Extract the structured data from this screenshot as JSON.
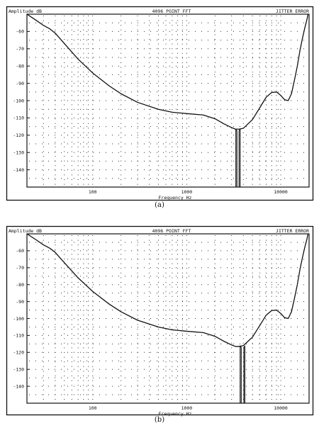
{
  "chart_data": [
    {
      "type": "line",
      "panel_caption": "(a)",
      "title": "4096 POINT FFT",
      "ylabel": "Amplitude dB",
      "subtitle_right": "JITTER ERROR",
      "xlabel": "Frequency Hz",
      "xscale": "log",
      "xlim": [
        20,
        20000
      ],
      "ylim": [
        -150,
        -50
      ],
      "x_ticks": [
        "100",
        "1000",
        "10000"
      ],
      "y_ticks": [
        "-60",
        "-70",
        "-80",
        "-90",
        "-100",
        "-110",
        "-120",
        "-130",
        "-140"
      ],
      "grid": "dotted",
      "series": [
        {
          "name": "",
          "x": [
            20,
            25,
            30,
            35,
            40,
            50,
            70,
            100,
            150,
            200,
            300,
            500,
            700,
            1000,
            1500,
            2000,
            2500,
            3000,
            3300,
            3600,
            4000,
            5000,
            6000,
            7000,
            8000,
            9000,
            10000,
            11000,
            12000,
            13000,
            14000,
            15000,
            16000,
            17000,
            18000,
            19000,
            20000
          ],
          "y": [
            -50,
            -53.5,
            -56.5,
            -58.5,
            -61,
            -67,
            -76,
            -84,
            -91.5,
            -96,
            -101,
            -105,
            -106.7,
            -107.5,
            -108.3,
            -110.5,
            -113.5,
            -115.6,
            -116.5,
            -116.5,
            -116,
            -111,
            -104,
            -98,
            -95.3,
            -95,
            -97,
            -99.5,
            -100,
            -96,
            -88,
            -80,
            -71,
            -64,
            -58,
            -53,
            -47
          ]
        },
        {
          "name": "",
          "x": [
            3330,
            3330,
            3420,
            3420,
            3600,
            3600,
            3700,
            3700
          ],
          "y": [
            -150,
            -116.5,
            -117.5,
            -150,
            -150,
            -117.5,
            -116.5,
            -150
          ]
        }
      ]
    },
    {
      "type": "line",
      "panel_caption": "(b)",
      "title": "4096 POINT FFT",
      "ylabel": "Amplitude dB",
      "subtitle_right": "JITTER ERROR",
      "xlabel": "Frequency Hz",
      "xscale": "log",
      "xlim": [
        20,
        20000
      ],
      "ylim": [
        -150,
        -50
      ],
      "x_ticks": [
        "100",
        "1000",
        "10000"
      ],
      "y_ticks": [
        "-60",
        "-70",
        "-80",
        "-90",
        "-100",
        "-110",
        "-120",
        "-130",
        "-140"
      ],
      "grid": "dotted",
      "series": [
        {
          "name": "",
          "x": [
            20,
            25,
            30,
            35,
            40,
            50,
            70,
            100,
            150,
            200,
            300,
            500,
            700,
            1000,
            1500,
            2000,
            2500,
            3000,
            3300,
            3600,
            4000,
            5000,
            6000,
            7000,
            8000,
            9000,
            10000,
            11000,
            12000,
            13000,
            14000,
            15000,
            16000,
            17000,
            18000,
            19000,
            20000
          ],
          "y": [
            -50,
            -53.5,
            -56.5,
            -58.5,
            -61,
            -67,
            -76,
            -84,
            -91.5,
            -96,
            -101,
            -105,
            -106.7,
            -107.5,
            -108.3,
            -110.5,
            -113.5,
            -115.6,
            -116.5,
            -116.5,
            -116,
            -111,
            -104,
            -98,
            -95.3,
            -95,
            -97,
            -99.5,
            -100,
            -96,
            -88,
            -80,
            -71,
            -64,
            -58,
            -53,
            -47
          ]
        },
        {
          "name": "",
          "x": [
            3700,
            3700,
            3800,
            3800,
            4050,
            4050,
            4150,
            4150
          ],
          "y": [
            -150,
            -116.2,
            -117.2,
            -150,
            -150,
            -117.2,
            -116.2,
            -150
          ]
        }
      ]
    }
  ],
  "colors": {
    "ink": "#111111",
    "grid": "#333333",
    "background": "#ffffff"
  }
}
